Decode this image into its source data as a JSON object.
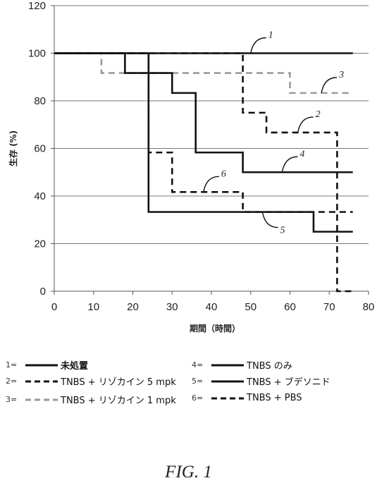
{
  "chart_data": {
    "type": "line",
    "step": true,
    "xlabel": "期間（時間）",
    "ylabel": "生存 (%)",
    "xlim": [
      0,
      80
    ],
    "ylim": [
      0,
      120
    ],
    "xticks": [
      0,
      10,
      20,
      30,
      40,
      50,
      60,
      70,
      80
    ],
    "yticks": [
      0,
      20,
      40,
      60,
      80,
      100,
      120
    ],
    "grid": "horizontal",
    "legend_position": "bottom",
    "series": [
      {
        "id": "1",
        "name": "未処置",
        "color": "#111111",
        "dash": "solid",
        "x": [
          0,
          76
        ],
        "y": [
          100,
          100
        ]
      },
      {
        "id": "2",
        "name": "TNBS + リゾカイン 5 mpk",
        "color": "#111111",
        "dash": "long-dash",
        "x": [
          0,
          24,
          36,
          48,
          54,
          72,
          76
        ],
        "y": [
          100,
          100,
          100,
          75,
          66.7,
          33.3,
          33.3
        ]
      },
      {
        "id": "3",
        "name": "TNBS + リゾカイン 1 mpk",
        "color": "#9a9a9a",
        "dash": "long-dash",
        "x": [
          0,
          12,
          48,
          60,
          76
        ],
        "y": [
          100,
          91.7,
          91.7,
          83.3,
          83.3
        ]
      },
      {
        "id": "4",
        "name": "TNBS のみ",
        "color": "#111111",
        "dash": "solid",
        "x": [
          0,
          18,
          24,
          30,
          36,
          48,
          76
        ],
        "y": [
          100,
          91.7,
          91.7,
          83.3,
          58.3,
          50,
          50
        ]
      },
      {
        "id": "5",
        "name": "TNBS + ブデソニド",
        "color": "#111111",
        "dash": "solid",
        "x": [
          0,
          24,
          66,
          76
        ],
        "y": [
          100,
          33.3,
          25,
          25
        ]
      },
      {
        "id": "6",
        "name": "TNBS + PBS",
        "color": "#111111",
        "dash": "long-dash",
        "x": [
          0,
          24,
          30,
          48,
          72,
          76
        ],
        "y": [
          100,
          58.3,
          41.7,
          33.3,
          0,
          0
        ]
      }
    ],
    "callouts": [
      {
        "label": "1",
        "series": "1",
        "x": 50,
        "y": 100
      },
      {
        "label": "2",
        "series": "2",
        "x": 62,
        "y": 66.7
      },
      {
        "label": "3",
        "series": "3",
        "x": 68,
        "y": 83.3
      },
      {
        "label": "4",
        "series": "4",
        "x": 58,
        "y": 50
      },
      {
        "label": "5",
        "series": "5",
        "x": 53,
        "y": 33.3
      },
      {
        "label": "6",
        "series": "6",
        "x": 38,
        "y": 41.7
      }
    ]
  },
  "legend": [
    {
      "num": "1=",
      "label": "未処置"
    },
    {
      "num": "2=",
      "label": "TNBS + リゾカイン 5 mpk"
    },
    {
      "num": "3=",
      "label": "TNBS + リゾカイン 1 mpk"
    },
    {
      "num": "4=",
      "label": "TNBS のみ"
    },
    {
      "num": "5=",
      "label": "TNBS + ブデソニド"
    },
    {
      "num": "6=",
      "label": "TNBS + PBS"
    }
  ],
  "caption": "FIG. 1"
}
